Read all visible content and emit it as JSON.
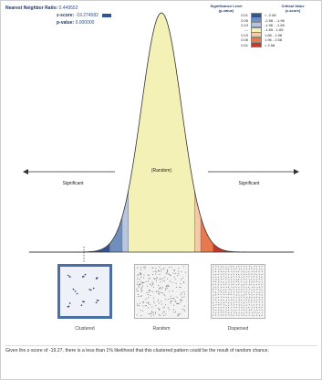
{
  "stats": {
    "nnr_label": "Nearest Neighbor Ratio:",
    "nnr_value": "0.449552",
    "z_label": "z-score:",
    "z_value": "-19.274582",
    "p_label": "p-value:",
    "p_value": "0.000000"
  },
  "legend": {
    "sig_header": "Significance Level",
    "sig_sub": "(p-value)",
    "crit_header": "Critical Value",
    "crit_sub": "(z-score)",
    "rows": [
      {
        "p": "0.01",
        "z": "< -2.58",
        "color": "#2f5597"
      },
      {
        "p": "0.05",
        "z": "-2.58 - -1.96",
        "color": "#6f8fbf"
      },
      {
        "p": "0.10",
        "z": "-1.96 - -1.65",
        "color": "#b6c6de"
      },
      {
        "p": "---",
        "z": "-1.65 - 1.65",
        "color": "#f3f1b5"
      },
      {
        "p": "0.10",
        "z": "1.65 - 1.96",
        "color": "#f4c9a6"
      },
      {
        "p": "0.05",
        "z": "1.96 - 2.58",
        "color": "#e8794f"
      },
      {
        "p": "0.01",
        "z": "> 2.58",
        "color": "#c0392b"
      }
    ]
  },
  "curve": {
    "random_label": "(Random)",
    "left_label": "Significant",
    "right_label": "Significant"
  },
  "patterns": [
    {
      "label": "Clustered",
      "active": true
    },
    {
      "label": "Random",
      "active": false
    },
    {
      "label": "Dispersed",
      "active": false
    }
  ],
  "caption": "Given the z-score of -19.27, there is a less than 1% likelihood that this clustered pattern could be the result of random chance."
}
